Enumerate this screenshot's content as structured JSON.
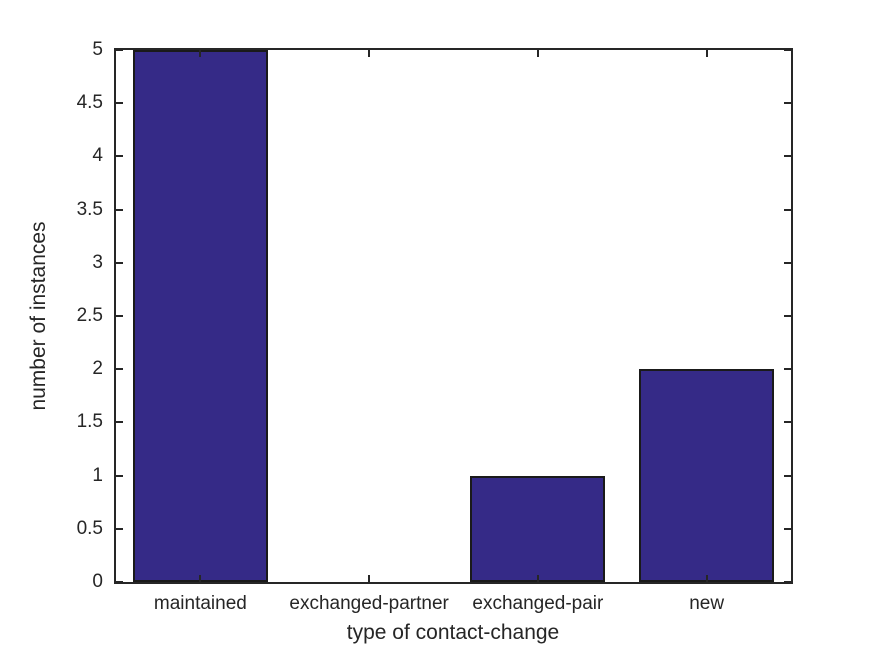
{
  "chart_data": {
    "type": "bar",
    "title": "",
    "xlabel": "type of contact-change",
    "ylabel": "number of instances",
    "categories": [
      "maintained",
      "exchanged-partner",
      "exchanged-pair",
      "new"
    ],
    "values": [
      5,
      0,
      1,
      2
    ],
    "ylim": [
      0,
      5
    ],
    "yticks": [
      0,
      0.5,
      1,
      1.5,
      2,
      2.5,
      3,
      3.5,
      4,
      4.5,
      5
    ],
    "ytick_labels": [
      "0",
      "0.5",
      "1",
      "1.5",
      "2",
      "2.5",
      "3",
      "3.5",
      "4",
      "4.5",
      "5"
    ],
    "bar_width_fraction": 0.8,
    "grid": false,
    "legend": "none",
    "box": true,
    "colors": {
      "bar_fill": "#352a87",
      "bar_edge": "#1a1a1a",
      "axis": "#262626",
      "text": "#262626",
      "background": "#ffffff"
    }
  }
}
